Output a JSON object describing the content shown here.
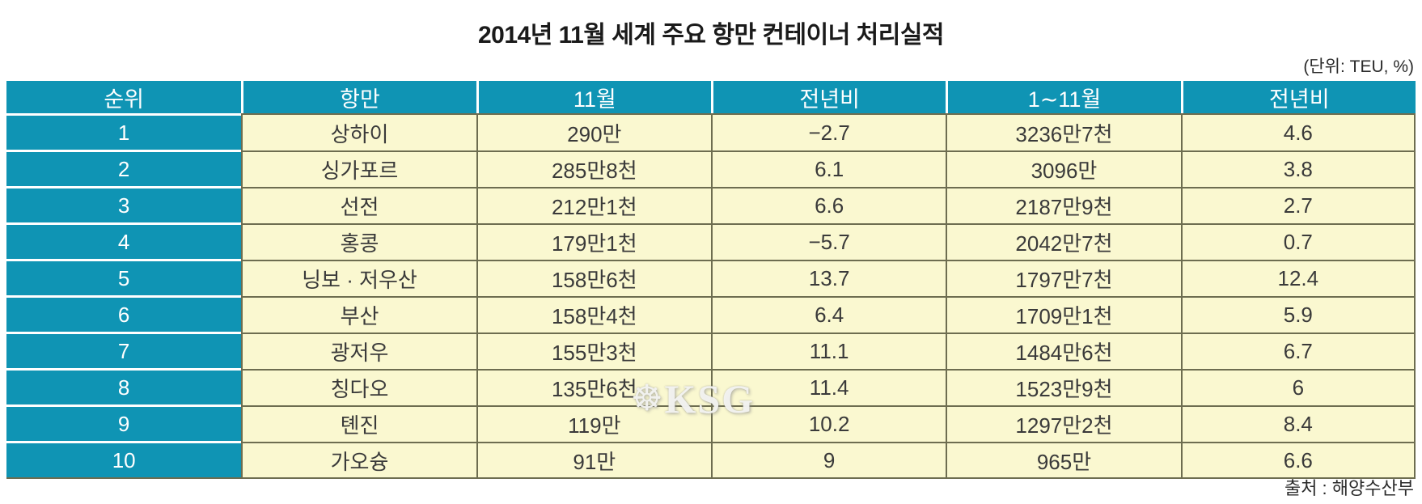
{
  "title": "2014년 11월 세계 주요 항만 컨테이너 처리실적",
  "unit_note": "(단위: TEU, %)",
  "source_note": "출처 : 해양수산부",
  "watermark": {
    "icon": "ship-wheel",
    "icon_glyph": "☸",
    "text": "KSG"
  },
  "colors": {
    "header_bg": "#0f94b4",
    "rank_col_bg": "#0f94b4",
    "cell_bg": "#faf8d0",
    "grid_line": "#6d6d50",
    "header_text": "#ffffff",
    "cell_text": "#3a3a3a"
  },
  "chart_data": {
    "type": "table",
    "title": "2014년 11월 세계 주요 항만 컨테이너 처리실적",
    "unit": "TEU, %",
    "columns": [
      "순위",
      "항만",
      "11월",
      "전년비",
      "1∼11월",
      "전년비"
    ],
    "rows": [
      [
        "1",
        "상하이",
        "290만",
        "−2.7",
        "3236만7천",
        "4.6"
      ],
      [
        "2",
        "싱가포르",
        "285만8천",
        "6.1",
        "3096만",
        "3.8"
      ],
      [
        "3",
        "선전",
        "212만1천",
        "6.6",
        "2187만9천",
        "2.7"
      ],
      [
        "4",
        "홍콩",
        "179만1천",
        "−5.7",
        "2042만7천",
        "0.7"
      ],
      [
        "5",
        "닝보 · 저우산",
        "158만6천",
        "13.7",
        "1797만7천",
        "12.4"
      ],
      [
        "6",
        "부산",
        "158만4천",
        "6.4",
        "1709만1천",
        "5.9"
      ],
      [
        "7",
        "광저우",
        "155만3천",
        "11.1",
        "1484만6천",
        "6.7"
      ],
      [
        "8",
        "칭다오",
        "135만6천",
        "11.4",
        "1523만9천",
        "6"
      ],
      [
        "9",
        "톈진",
        "119만",
        "10.2",
        "1297만2천",
        "8.4"
      ],
      [
        "10",
        "가오슝",
        "91만",
        "9",
        "965만",
        "6.6"
      ]
    ],
    "source": "해양수산부"
  }
}
